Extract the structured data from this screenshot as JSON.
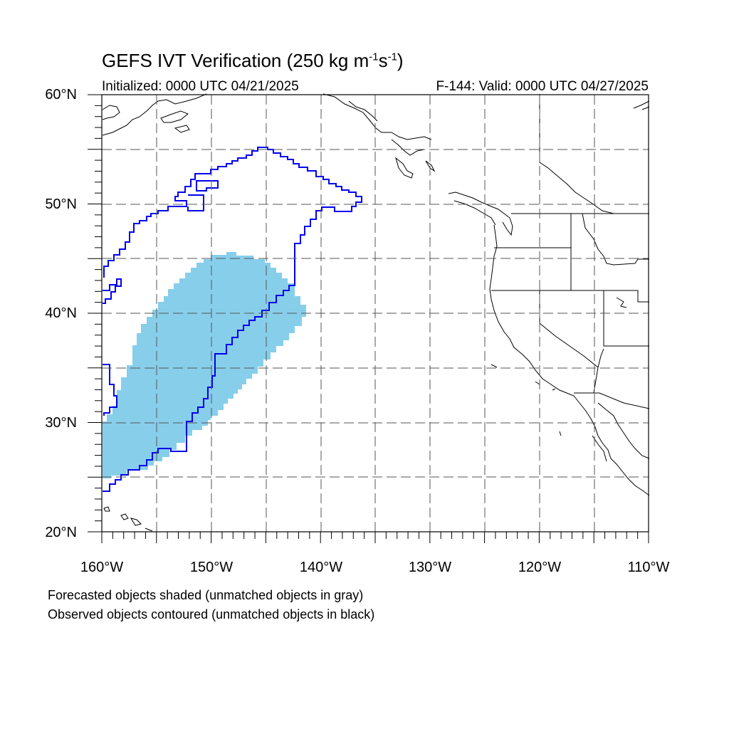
{
  "figure": {
    "title_main": "GEFS IVT Verification (250 kg m",
    "title_sup1": "-1",
    "title_mid": "s",
    "title_sup2": "-1",
    "title_end": ")",
    "initialized": "Initialized: 0000 UTC 04/21/2025",
    "valid": "F-144: Valid: 0000 UTC 04/27/2025"
  },
  "map": {
    "lon_range": [
      -160,
      -110
    ],
    "lat_range": [
      20,
      60
    ],
    "lat_labels": [
      "60°N",
      "50°N",
      "40°N",
      "30°N",
      "20°N"
    ],
    "lon_labels": [
      "160°W",
      "150°W",
      "140°W",
      "130°W",
      "120°W",
      "110°W"
    ],
    "grid": "dashed, every 5 degrees",
    "colors": {
      "forecast_fill": "#87ceeb",
      "observed_contour": "#0000ee",
      "coastline": "#000000"
    }
  },
  "notes": {
    "line1": "Forecasted objects shaded (unmatched objects in gray)",
    "line2": "Observed objects contoured (unmatched objects in black)"
  }
}
